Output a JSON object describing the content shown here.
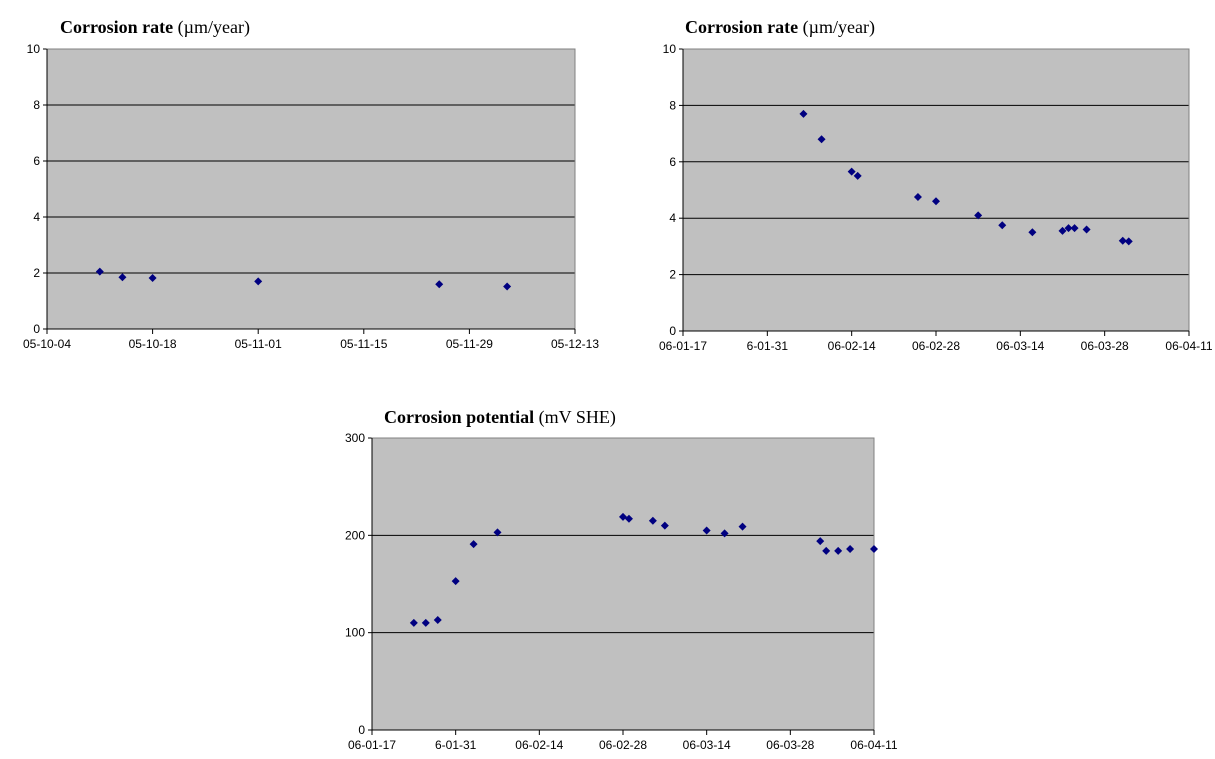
{
  "chart_data": [
    {
      "type": "scatter",
      "title": "Corrosion rate",
      "title_unit": "(µm/year)",
      "xlabel": "",
      "ylabel": "",
      "x_axis": "date",
      "x_ticks": [
        "05-10-04",
        "05-10-18",
        "05-11-01",
        "05-11-15",
        "05-11-29",
        "05-12-13"
      ],
      "xlim": [
        "2005-10-04",
        "2005-12-13"
      ],
      "ylim": [
        0,
        10
      ],
      "y_ticks": [
        "0",
        "2",
        "4",
        "6",
        "8",
        "10"
      ],
      "grid": "horizontal",
      "plot_background": "#c0c0c0",
      "marker_color": "#000080",
      "marker": "diamond",
      "series": [
        {
          "points": [
            {
              "x": "2005-10-11",
              "y": 2.05
            },
            {
              "x": "2005-10-14",
              "y": 1.85
            },
            {
              "x": "2005-10-18",
              "y": 1.82
            },
            {
              "x": "2005-11-01",
              "y": 1.7
            },
            {
              "x": "2005-11-25",
              "y": 1.6
            },
            {
              "x": "2005-12-04",
              "y": 1.52
            }
          ]
        }
      ]
    },
    {
      "type": "scatter",
      "title": "Corrosion rate",
      "title_unit": "(µm/year)",
      "xlabel": "",
      "ylabel": "",
      "x_axis": "date",
      "x_ticks": [
        "06-01-17",
        "6-01-31",
        "06-02-14",
        "06-02-28",
        "06-03-14",
        "06-03-28",
        "06-04-11"
      ],
      "xlim": [
        "2006-01-17",
        "2006-04-11"
      ],
      "ylim": [
        0,
        10
      ],
      "y_ticks": [
        "0",
        "2",
        "4",
        "6",
        "8",
        "10"
      ],
      "grid": "horizontal",
      "plot_background": "#c0c0c0",
      "marker_color": "#000080",
      "marker": "diamond",
      "series": [
        {
          "points": [
            {
              "x": "2006-02-06",
              "y": 7.7
            },
            {
              "x": "2006-02-09",
              "y": 6.8
            },
            {
              "x": "2006-02-14",
              "y": 5.65
            },
            {
              "x": "2006-02-15",
              "y": 5.5
            },
            {
              "x": "2006-02-25",
              "y": 4.75
            },
            {
              "x": "2006-02-28",
              "y": 4.6
            },
            {
              "x": "2006-03-07",
              "y": 4.1
            },
            {
              "x": "2006-03-11",
              "y": 3.75
            },
            {
              "x": "2006-03-16",
              "y": 3.5
            },
            {
              "x": "2006-03-21",
              "y": 3.55
            },
            {
              "x": "2006-03-22",
              "y": 3.65
            },
            {
              "x": "2006-03-23",
              "y": 3.65
            },
            {
              "x": "2006-03-25",
              "y": 3.6
            },
            {
              "x": "2006-03-31",
              "y": 3.2
            },
            {
              "x": "2006-04-01",
              "y": 3.18
            }
          ]
        }
      ]
    },
    {
      "type": "scatter",
      "title": "Corrosion potential",
      "title_unit": "(mV SHE)",
      "xlabel": "",
      "ylabel": "",
      "x_axis": "date",
      "x_ticks": [
        "06-01-17",
        "6-01-31",
        "06-02-14",
        "06-02-28",
        "06-03-14",
        "06-03-28",
        "06-04-11"
      ],
      "xlim": [
        "2006-01-17",
        "2006-04-11"
      ],
      "ylim": [
        0,
        300
      ],
      "y_ticks": [
        "0",
        "100",
        "200",
        "300"
      ],
      "grid": "horizontal",
      "plot_background": "#c0c0c0",
      "marker_color": "#000080",
      "marker": "diamond",
      "series": [
        {
          "points": [
            {
              "x": "2006-01-24",
              "y": 110
            },
            {
              "x": "2006-01-26",
              "y": 110
            },
            {
              "x": "2006-01-28",
              "y": 113
            },
            {
              "x": "2006-01-31",
              "y": 153
            },
            {
              "x": "2006-02-03",
              "y": 191
            },
            {
              "x": "2006-02-07",
              "y": 203
            },
            {
              "x": "2006-02-28",
              "y": 219
            },
            {
              "x": "2006-03-01",
              "y": 217
            },
            {
              "x": "2006-03-05",
              "y": 215
            },
            {
              "x": "2006-03-07",
              "y": 210
            },
            {
              "x": "2006-03-14",
              "y": 205
            },
            {
              "x": "2006-03-17",
              "y": 202
            },
            {
              "x": "2006-03-20",
              "y": 209
            },
            {
              "x": "2006-04-02",
              "y": 194
            },
            {
              "x": "2006-04-03",
              "y": 184
            },
            {
              "x": "2006-04-05",
              "y": 184
            },
            {
              "x": "2006-04-07",
              "y": 186
            },
            {
              "x": "2006-04-11",
              "y": 186
            }
          ]
        }
      ]
    }
  ]
}
